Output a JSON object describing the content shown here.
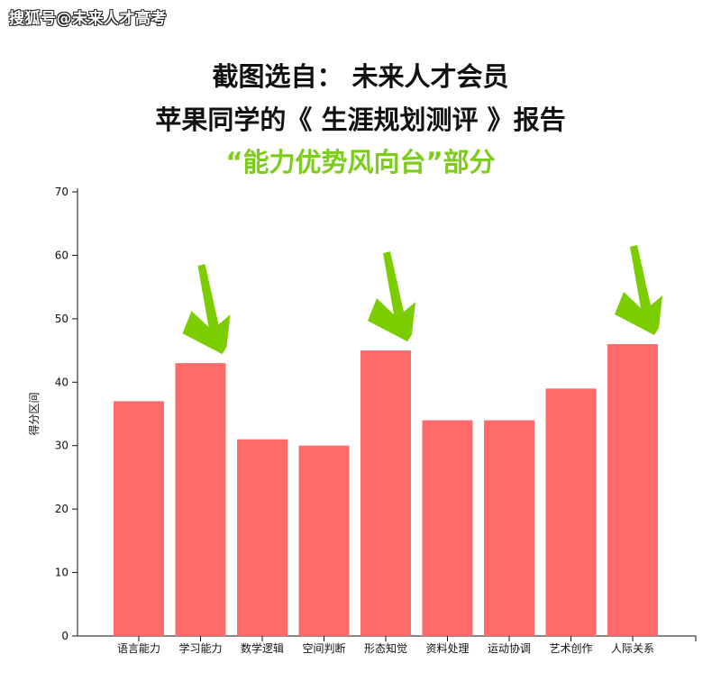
{
  "watermark": "搜狐号@未来人才高考",
  "header": {
    "line1": "截图选自：  未来人才会员",
    "line2": "苹果同学的《 生涯规划测评 》报告",
    "line3": "“能力优势风向台”部分"
  },
  "colors": {
    "bar": "#ff6b6b",
    "arrow": "#7ccd00",
    "axis": "#111111",
    "highlight_text": "#7ccd1a"
  },
  "chart_data": {
    "type": "bar",
    "categories": [
      "语言能力",
      "学习能力",
      "数学逻辑",
      "空间判断",
      "形态知觉",
      "资料处理",
      "运动协调",
      "艺术创作",
      "人际关系"
    ],
    "values": [
      37,
      43,
      31,
      30,
      45,
      34,
      34,
      39,
      46
    ],
    "ylabel": "得分区间",
    "ylim": [
      0,
      70
    ],
    "yticks": [
      0,
      10,
      20,
      30,
      40,
      50,
      60,
      70
    ],
    "grid": false,
    "legend": "none",
    "annotations": [
      {
        "type": "arrow-icon",
        "category": "学习能力"
      },
      {
        "type": "arrow-icon",
        "category": "形态知觉"
      },
      {
        "type": "arrow-icon",
        "category": "人际关系"
      }
    ]
  }
}
